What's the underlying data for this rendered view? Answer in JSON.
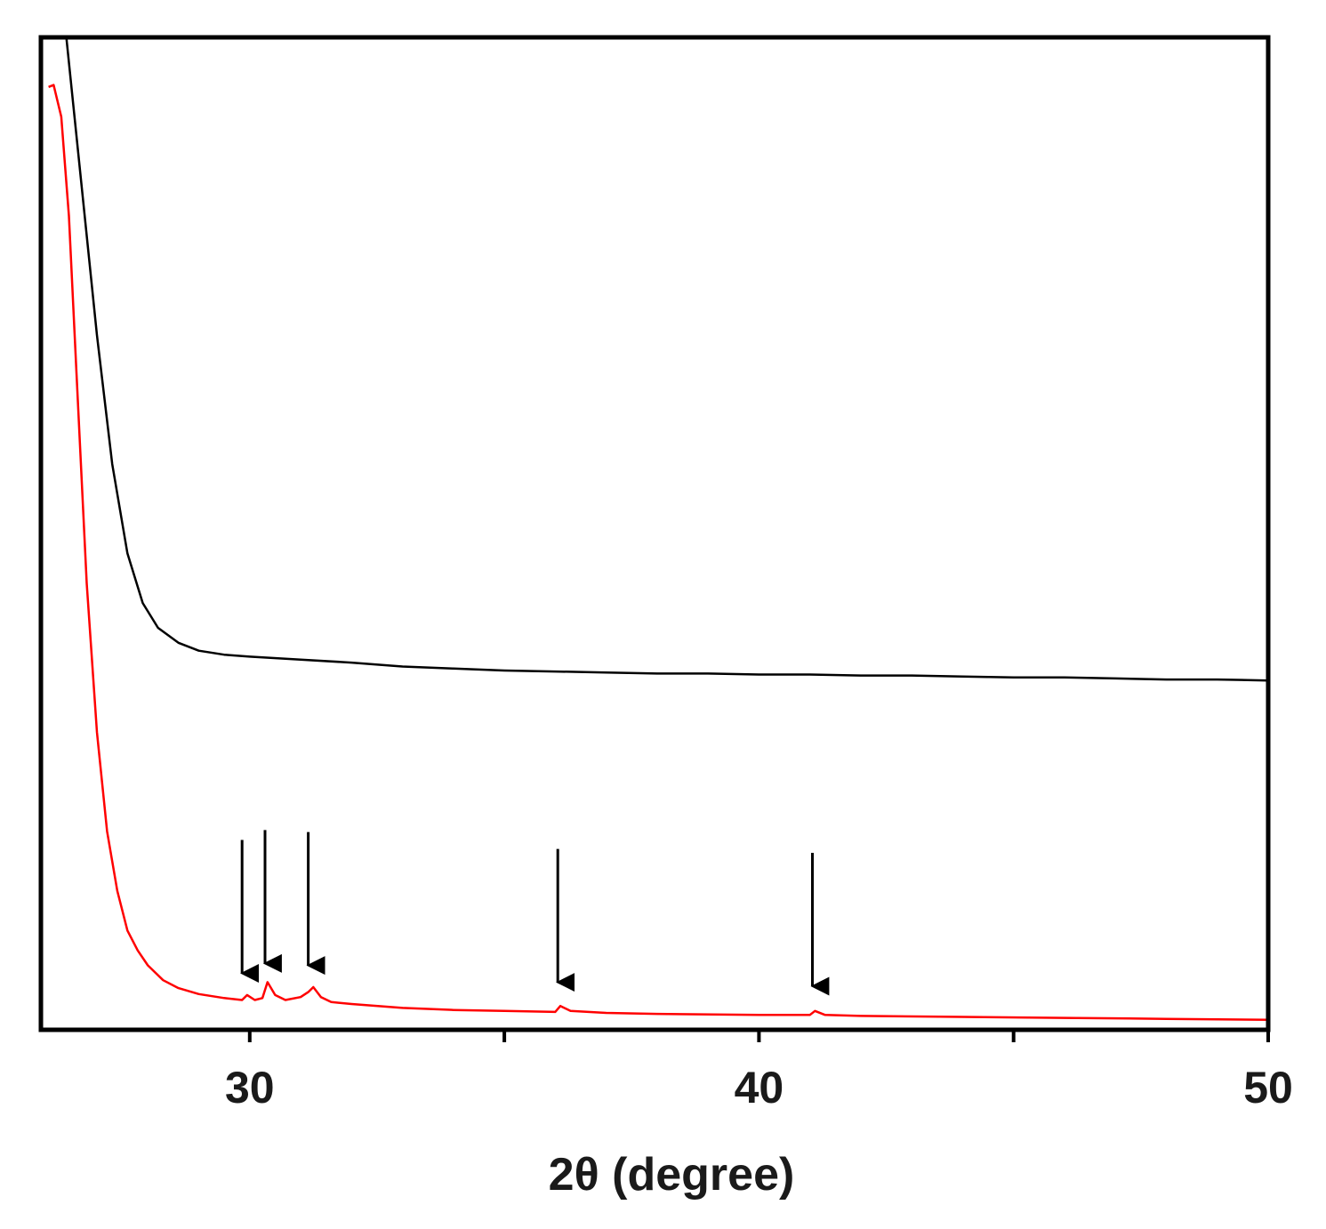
{
  "chart_data": {
    "type": "line",
    "title": "",
    "xlabel": "2θ (degree)",
    "ylabel": "",
    "xlim": [
      25.9,
      50
    ],
    "ylim": [
      0,
      100
    ],
    "x_ticks_major": [
      30,
      40,
      50
    ],
    "x_ticks_minor": [
      35,
      45
    ],
    "x_tick_labels": [
      "30",
      "40",
      "50"
    ],
    "y_ticks_shown": false,
    "grid": false,
    "legend": "none",
    "series": [
      {
        "color": "#000000",
        "x": [
          26.4,
          26.7,
          27.0,
          27.3,
          27.6,
          27.9,
          28.2,
          28.6,
          29.0,
          29.5,
          30.0,
          31.0,
          32.0,
          33.0,
          34.0,
          35.0,
          36.0,
          37.0,
          38.0,
          39.0,
          40.0,
          41.0,
          42.0,
          43.0,
          44.0,
          45.0,
          46.0,
          47.0,
          48.0,
          49.0,
          50.0
        ],
        "y": [
          100.0,
          85.0,
          70.0,
          57.0,
          48.0,
          43.0,
          40.5,
          39.0,
          38.2,
          37.8,
          37.6,
          37.3,
          37.0,
          36.6,
          36.4,
          36.2,
          36.1,
          36.0,
          35.9,
          35.9,
          35.8,
          35.8,
          35.7,
          35.7,
          35.6,
          35.5,
          35.5,
          35.4,
          35.3,
          35.3,
          35.2
        ]
      },
      {
        "color": "#ff0000",
        "x": [
          26.05,
          26.15,
          26.3,
          26.45,
          26.6,
          26.8,
          27.0,
          27.2,
          27.4,
          27.6,
          27.8,
          28.0,
          28.3,
          28.6,
          29.0,
          29.5,
          29.85,
          29.95,
          30.1,
          30.25,
          30.35,
          30.5,
          30.7,
          31.0,
          31.15,
          31.25,
          31.4,
          31.6,
          32.0,
          33.0,
          34.0,
          35.0,
          36.0,
          36.1,
          36.3,
          37.0,
          38.0,
          40.0,
          41.0,
          41.1,
          41.3,
          42.0,
          44.0,
          46.0,
          48.0,
          50.0
        ],
        "y": [
          95.0,
          95.2,
          92.0,
          82.0,
          66.0,
          45.0,
          30.0,
          20.0,
          14.0,
          10.0,
          8.0,
          6.5,
          5.0,
          4.2,
          3.6,
          3.2,
          3.0,
          3.5,
          3.0,
          3.2,
          4.8,
          3.5,
          3.0,
          3.3,
          3.8,
          4.3,
          3.3,
          2.8,
          2.6,
          2.2,
          2.0,
          1.9,
          1.8,
          2.4,
          1.9,
          1.7,
          1.6,
          1.5,
          1.5,
          1.9,
          1.5,
          1.4,
          1.3,
          1.2,
          1.1,
          1.0
        ]
      }
    ],
    "annotations": [
      {
        "type": "arrow",
        "x": 29.85
      },
      {
        "type": "arrow",
        "x": 30.3
      },
      {
        "type": "arrow",
        "x": 31.15
      },
      {
        "type": "arrow",
        "x": 36.05
      },
      {
        "type": "arrow",
        "x": 41.05
      }
    ]
  }
}
